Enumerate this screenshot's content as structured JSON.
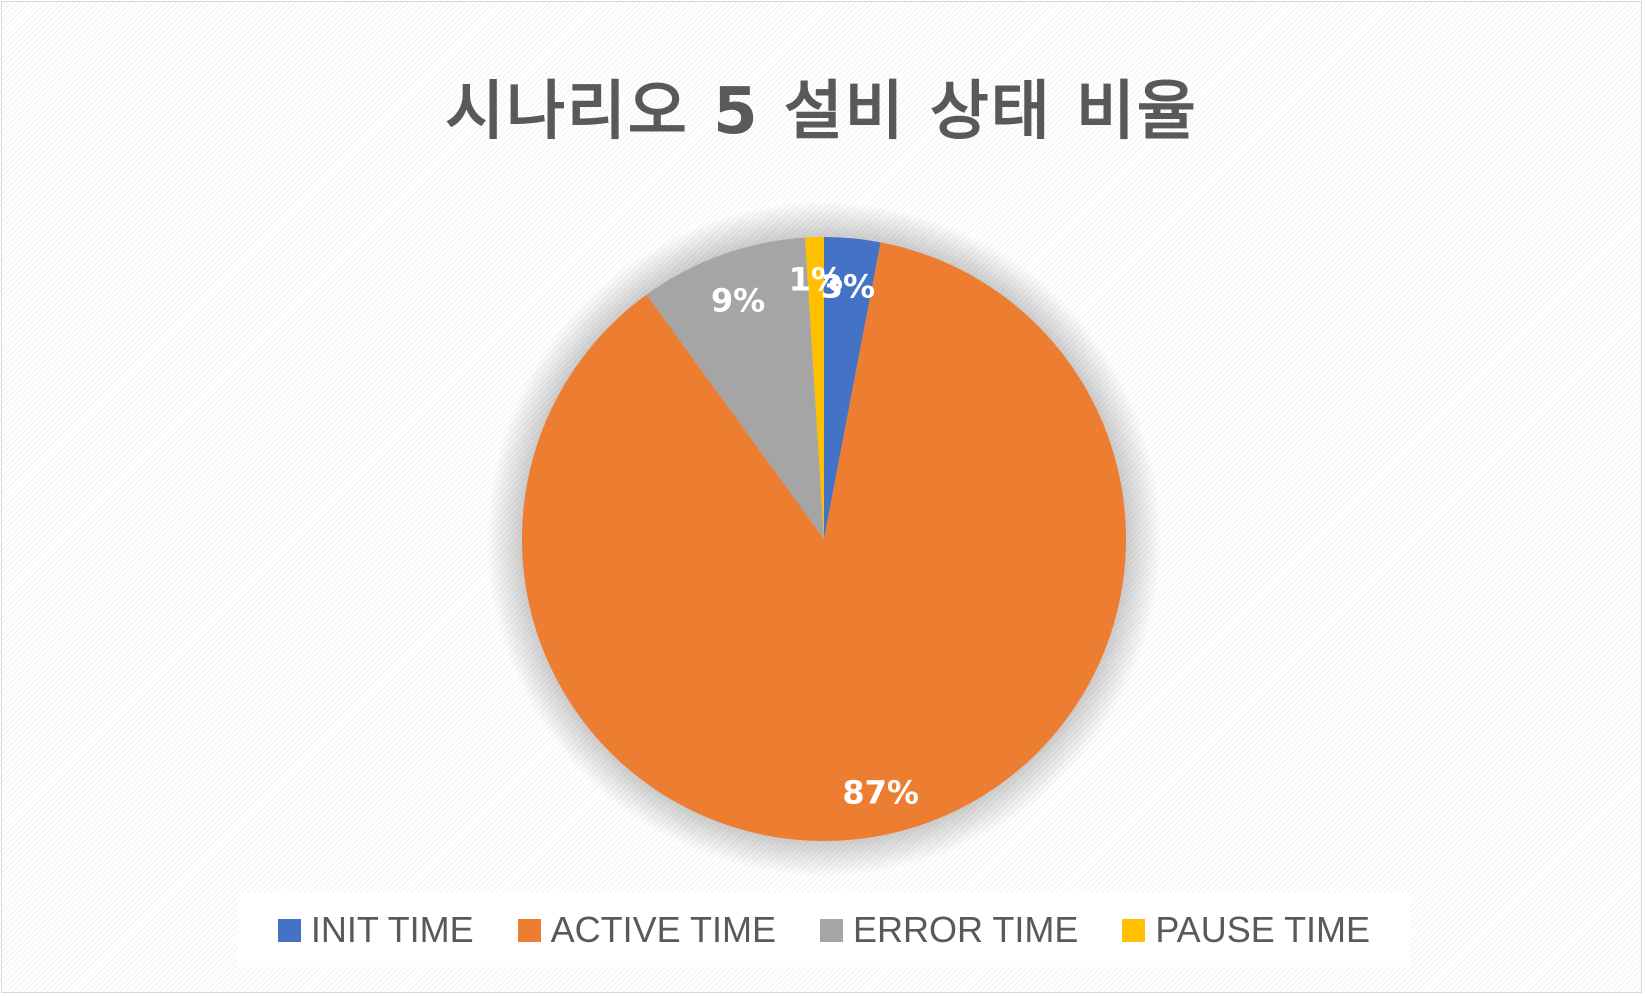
{
  "chart_data": {
    "type": "pie",
    "title": "시나리오 5 설비 상태 비율",
    "categories": [
      "INIT TIME",
      "ACTIVE TIME",
      "ERROR TIME",
      "PAUSE TIME"
    ],
    "values": [
      3,
      87,
      9,
      1
    ],
    "data_labels": [
      "3%",
      "87%",
      "9%",
      "1%"
    ],
    "colors": [
      "#4472C4",
      "#ED7D31",
      "#A5A5A5",
      "#FFC000"
    ],
    "start_angle_deg": 0,
    "direction": "clockwise",
    "legend_position": "bottom",
    "label_color": "#FFFFFF"
  }
}
